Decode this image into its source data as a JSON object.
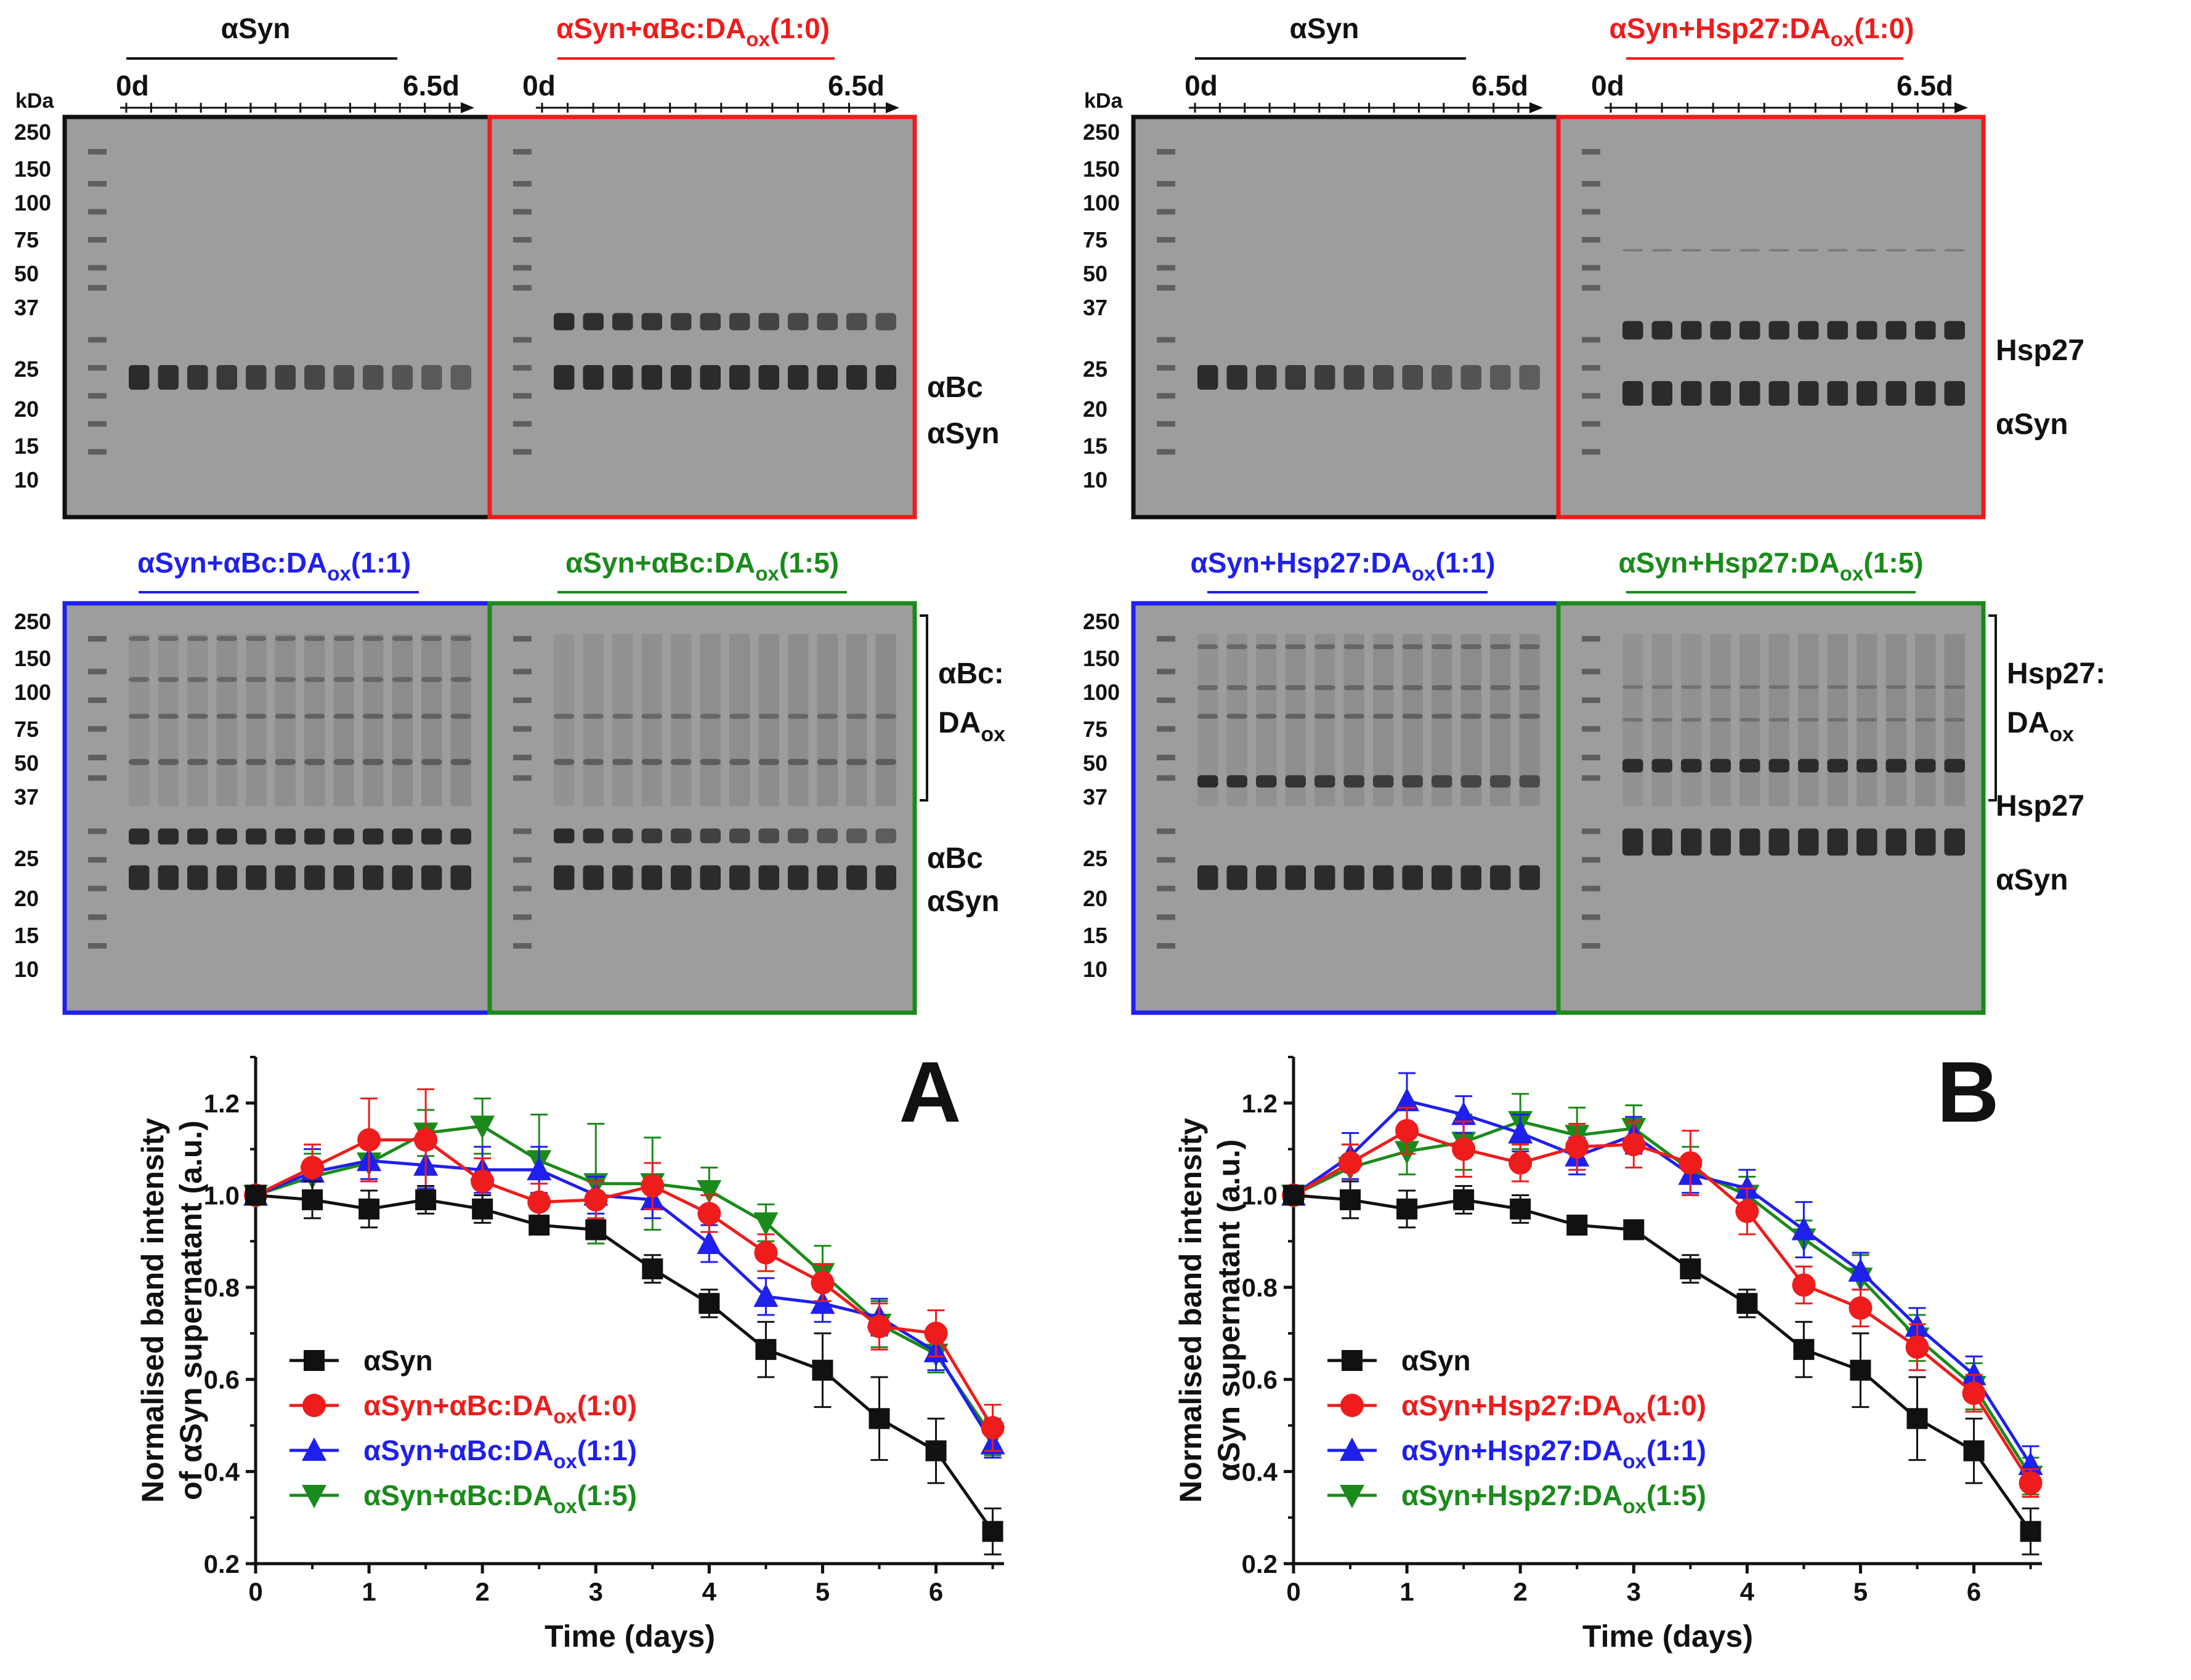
{
  "colors": {
    "black": "#111111",
    "red": "#ee1c1c",
    "blue": "#1f1fee",
    "green": "#1a8a1a",
    "gel": "#9d9d9d",
    "band": "#2b2b2b"
  },
  "gels": {
    "kda_unit": "kDa",
    "marker_labels": [
      "250",
      "150",
      "100",
      "75",
      "50",
      "37",
      "25",
      "20",
      "15",
      "10"
    ],
    "time_start": "0d",
    "time_end": "6.5d",
    "A": {
      "top_left_title": "αSyn",
      "top_right_title": {
        "main": "αSyn+αBc:DA",
        "sub": "ox",
        "ratio": "(1:0)"
      },
      "bottom_left_title": {
        "main": "αSyn+αBc:DA",
        "sub": "ox",
        "ratio": "(1:1)"
      },
      "bottom_right_title": {
        "main": "αSyn+αBc:DA",
        "sub": "ox",
        "ratio": "(1:5)"
      },
      "top_band_labels": [
        "αBc",
        "αSyn"
      ],
      "bottom_band_labels": {
        "complex_line1": "αBc:",
        "complex_line2": "DA",
        "complex_sub": "ox",
        "chaperone": "αBc",
        "syn": "αSyn"
      }
    },
    "B": {
      "top_left_title": "αSyn",
      "top_right_title": {
        "main": "αSyn+Hsp27:DA",
        "sub": "ox",
        "ratio": "(1:0)"
      },
      "bottom_left_title": {
        "main": "αSyn+Hsp27:DA",
        "sub": "ox",
        "ratio": "(1:1)"
      },
      "bottom_right_title": {
        "main": "αSyn+Hsp27:DA",
        "sub": "ox",
        "ratio": "(1:5)"
      },
      "top_band_labels": [
        "Hsp27",
        "αSyn"
      ],
      "bottom_band_labels": {
        "complex_line1": "Hsp27:",
        "complex_line2": "DA",
        "complex_sub": "ox",
        "chaperone": "Hsp27",
        "syn": "αSyn"
      }
    }
  },
  "chart_data": [
    {
      "type": "line",
      "panel_letter": "A",
      "ylabel_line1": "Normalised band intensity",
      "ylabel_line2": "of αSyn supernatant (a.u.)",
      "xlabel": "Time (days)",
      "xlim": [
        0,
        6.6
      ],
      "ylim": [
        0.2,
        1.3
      ],
      "xticks": [
        0,
        1,
        2,
        3,
        4,
        5,
        6
      ],
      "yticks": [
        0.2,
        0.4,
        0.6,
        0.8,
        1.0,
        1.2
      ],
      "x": [
        0,
        0.5,
        1,
        1.5,
        2,
        2.5,
        3,
        3.5,
        4,
        4.5,
        5,
        5.5,
        6,
        6.5
      ],
      "series": [
        {
          "name": "αSyn",
          "legend_main": "αSyn",
          "legend_sub": "",
          "legend_ratio": "",
          "color": "#111111",
          "marker": "square",
          "values": [
            1.0,
            0.99,
            0.97,
            0.99,
            0.97,
            0.935,
            0.925,
            0.84,
            0.765,
            0.665,
            0.62,
            0.515,
            0.445,
            0.27
          ],
          "errors": [
            0.01,
            0.04,
            0.04,
            0.03,
            0.03,
            0.02,
            0.02,
            0.03,
            0.03,
            0.06,
            0.08,
            0.09,
            0.07,
            0.05
          ]
        },
        {
          "name": "αSyn+αBc:DAox(1:0)",
          "legend_main": "αSyn+αBc:DA",
          "legend_sub": "ox",
          "legend_ratio": "(1:0)",
          "color": "#ee1c1c",
          "marker": "circle",
          "values": [
            1.0,
            1.06,
            1.12,
            1.12,
            1.03,
            0.985,
            0.99,
            1.02,
            0.96,
            0.875,
            0.81,
            0.715,
            0.7,
            0.495
          ],
          "errors": [
            0.01,
            0.05,
            0.09,
            0.11,
            0.05,
            0.04,
            0.04,
            0.05,
            0.04,
            0.04,
            0.04,
            0.05,
            0.05,
            0.05
          ]
        },
        {
          "name": "αSyn+αBc:DAox(1:1)",
          "legend_main": "αSyn+αBc:DA",
          "legend_sub": "ox",
          "legend_ratio": "(1:1)",
          "color": "#1f1fee",
          "marker": "triangle-up",
          "values": [
            1.0,
            1.05,
            1.075,
            1.065,
            1.055,
            1.055,
            1.0,
            0.99,
            0.895,
            0.78,
            0.765,
            0.735,
            0.66,
            0.46
          ],
          "errors": [
            0.01,
            0.05,
            0.04,
            0.05,
            0.05,
            0.05,
            0.04,
            0.04,
            0.04,
            0.04,
            0.04,
            0.04,
            0.04,
            0.03
          ]
        },
        {
          "name": "αSyn+αBc:DAox(1:5)",
          "legend_main": "αSyn+αBc:DA",
          "legend_sub": "ox",
          "legend_ratio": "(1:5)",
          "color": "#1a8a1a",
          "marker": "triangle-down",
          "values": [
            1.0,
            1.04,
            1.07,
            1.135,
            1.15,
            1.075,
            1.025,
            1.025,
            1.01,
            0.94,
            0.83,
            0.72,
            0.655,
            0.475
          ],
          "errors": [
            0.01,
            0.05,
            0.04,
            0.05,
            0.06,
            0.1,
            0.13,
            0.1,
            0.05,
            0.04,
            0.06,
            0.05,
            0.04,
            0.04
          ]
        }
      ]
    },
    {
      "type": "line",
      "panel_letter": "B",
      "ylabel_line1": "Normalised band intensity",
      "ylabel_line2": "αSyn supernatant (a.u.)",
      "xlabel": "Time (days)",
      "xlim": [
        0,
        6.6
      ],
      "ylim": [
        0.2,
        1.3
      ],
      "xticks": [
        0,
        1,
        2,
        3,
        4,
        5,
        6
      ],
      "yticks": [
        0.2,
        0.4,
        0.6,
        0.8,
        1.0,
        1.2
      ],
      "x": [
        0,
        0.5,
        1,
        1.5,
        2,
        2.5,
        3,
        3.5,
        4,
        4.5,
        5,
        5.5,
        6,
        6.5
      ],
      "series": [
        {
          "name": "αSyn",
          "legend_main": "αSyn",
          "legend_sub": "",
          "legend_ratio": "",
          "color": "#111111",
          "marker": "square",
          "values": [
            1.0,
            0.99,
            0.97,
            0.99,
            0.97,
            0.935,
            0.925,
            0.84,
            0.765,
            0.665,
            0.62,
            0.515,
            0.445,
            0.27
          ],
          "errors": [
            0.01,
            0.04,
            0.04,
            0.03,
            0.03,
            0.02,
            0.02,
            0.03,
            0.03,
            0.06,
            0.08,
            0.09,
            0.07,
            0.05
          ]
        },
        {
          "name": "αSyn+Hsp27:DAox(1:0)",
          "legend_main": "αSyn+Hsp27:DA",
          "legend_sub": "ox",
          "legend_ratio": "(1:0)",
          "color": "#ee1c1c",
          "marker": "circle",
          "values": [
            1.0,
            1.07,
            1.14,
            1.1,
            1.07,
            1.105,
            1.11,
            1.07,
            0.965,
            0.805,
            0.755,
            0.67,
            0.57,
            0.375
          ],
          "errors": [
            0.01,
            0.04,
            0.05,
            0.06,
            0.04,
            0.05,
            0.05,
            0.07,
            0.05,
            0.04,
            0.04,
            0.05,
            0.04,
            0.03
          ]
        },
        {
          "name": "αSyn+Hsp27:DAox(1:1)",
          "legend_main": "αSyn+Hsp27:DA",
          "legend_sub": "ox",
          "legend_ratio": "(1:1)",
          "color": "#1f1fee",
          "marker": "triangle-up",
          "values": [
            1.0,
            1.085,
            1.205,
            1.175,
            1.135,
            1.085,
            1.13,
            1.045,
            1.015,
            0.925,
            0.835,
            0.715,
            0.61,
            0.415
          ],
          "errors": [
            0.01,
            0.05,
            0.06,
            0.04,
            0.04,
            0.04,
            0.04,
            0.04,
            0.04,
            0.06,
            0.04,
            0.04,
            0.04,
            0.04
          ]
        },
        {
          "name": "αSyn+Hsp27:DAox(1:5)",
          "legend_main": "αSyn+Hsp27:DA",
          "legend_sub": "ox",
          "legend_ratio": "(1:5)",
          "color": "#1a8a1a",
          "marker": "triangle-down",
          "values": [
            1.0,
            1.06,
            1.095,
            1.115,
            1.16,
            1.13,
            1.145,
            1.055,
            1.0,
            0.905,
            0.82,
            0.69,
            0.585,
            0.39
          ],
          "errors": [
            0.01,
            0.05,
            0.05,
            0.06,
            0.06,
            0.06,
            0.05,
            0.05,
            0.04,
            0.04,
            0.05,
            0.05,
            0.05,
            0.04
          ]
        }
      ]
    }
  ]
}
